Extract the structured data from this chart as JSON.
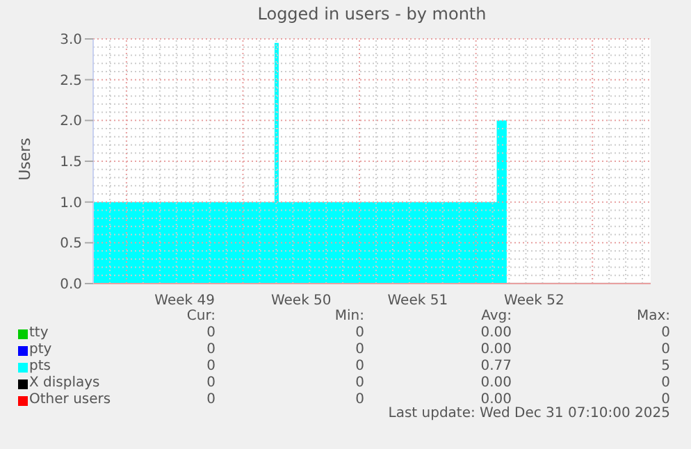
{
  "chart_data": {
    "type": "step",
    "title": "Logged in users - by month",
    "ylabel": "Users",
    "x": [
      "2025-11-29",
      "2025-12-09T21:36",
      "2025-12-10T03:36",
      "2025-12-23T06:00",
      "2025-12-23T20:24"
    ],
    "series": [
      {
        "name": "tty",
        "color": "#00cc00",
        "type": "area",
        "values": [
          null,
          null,
          null,
          null,
          null
        ]
      },
      {
        "name": "pty",
        "color": "#0000ff",
        "type": "area",
        "values": [
          null,
          null,
          null,
          null,
          null
        ]
      },
      {
        "name": "pts",
        "color": "#00ffff",
        "type": "area",
        "values": [
          1,
          2.95,
          1,
          2,
          0
        ]
      },
      {
        "name": "X displays",
        "color": "#000000",
        "type": "area",
        "values": [
          null,
          null,
          null,
          null,
          null
        ]
      },
      {
        "name": "Other users",
        "color": "#ff0000",
        "type": "area",
        "values": [
          null,
          null,
          null,
          null,
          null
        ]
      }
    ],
    "xlim": [
      "2025-11-29",
      "2026-01-01T12:00"
    ],
    "xticks": [
      {
        "value": "2025-12-01",
        "label": null
      },
      {
        "value": "2025-12-04T12:00",
        "label": "Week 49"
      },
      {
        "value": "2025-12-08",
        "label": null
      },
      {
        "value": "2025-12-11T12:00",
        "label": "Week 50"
      },
      {
        "value": "2025-12-15",
        "label": null
      },
      {
        "value": "2025-12-18T12:00",
        "label": "Week 51"
      },
      {
        "value": "2025-12-22",
        "label": null
      },
      {
        "value": "2025-12-25T12:00",
        "label": "Week 52"
      },
      {
        "value": "2025-12-29",
        "label": null
      }
    ],
    "ylim": [
      0,
      3
    ],
    "yticks": [
      {
        "value": 0,
        "label": "0.0"
      },
      {
        "value": 0.5,
        "label": "0.5"
      },
      {
        "value": 1,
        "label": "1.0"
      },
      {
        "value": 1.5,
        "label": "1.5"
      },
      {
        "value": 2,
        "label": "2.0"
      },
      {
        "value": 2.5,
        "label": "2.5"
      },
      {
        "value": 3,
        "label": "3.0"
      }
    ],
    "grid": true,
    "legend": "bottom",
    "annotations": [
      "Cur:",
      "Min:",
      "Avg:",
      "Max:",
      "0",
      "0",
      "0.00",
      "0",
      "0",
      "0",
      "0.00",
      "0",
      "0",
      "0",
      "0.77",
      "5",
      "0",
      "0",
      "0.00",
      "0",
      "0",
      "0",
      "0.00",
      "0",
      "Last update: Wed Dec 31 07:10:00 2025"
    ]
  }
}
